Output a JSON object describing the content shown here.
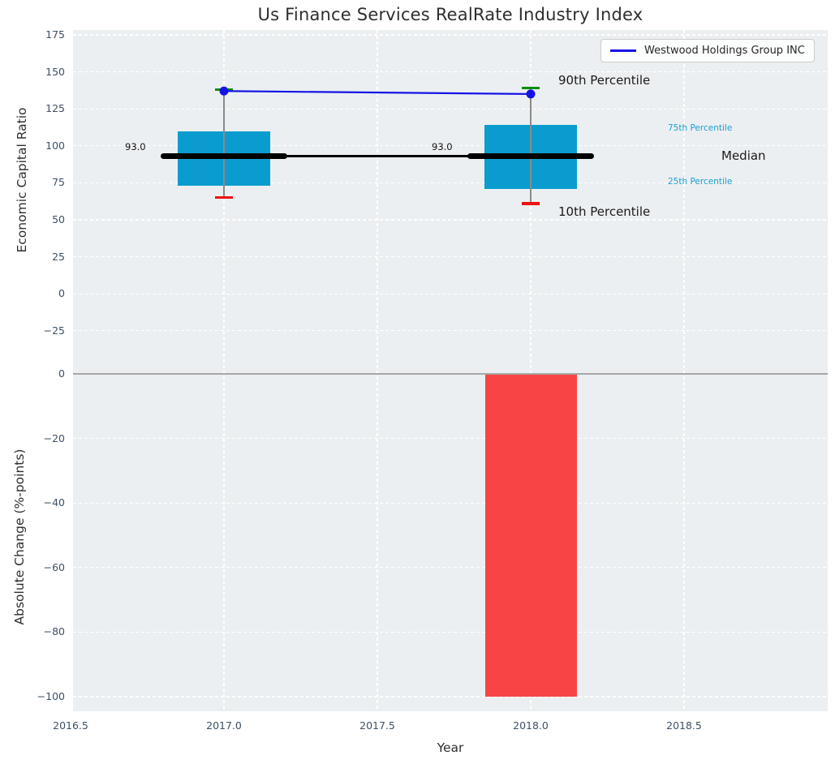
{
  "title": "Us Finance Services RealRate Industry Index",
  "legend": {
    "label": "Westwood Holdings Group INC"
  },
  "colors": {
    "plot_bg": "#eceff1",
    "grid": "#ffffff",
    "box_fill": "#0a9ccf",
    "bar_red": "#f83535",
    "cap_low_red": "#ee1111",
    "cap_high_green": "#0b8f0b",
    "series_blue": "#1414e6",
    "median_black": "#000000",
    "whisker_line": "#8a8a8a",
    "tick_text": "#3d5065",
    "percentile_text": "#16a0d4",
    "zero_line": "#a6a6a6"
  },
  "chart_data": [
    {
      "type": "box",
      "ylabel": "Economic Capital Ratio",
      "ylim": [
        -47,
        178
      ],
      "grid": true,
      "legend_position": "upper right",
      "boxes": [
        {
          "x": 2017,
          "p10": 65,
          "p25": 73,
          "median": 93,
          "p75": 110,
          "p90": 138,
          "median_label": "93.0"
        },
        {
          "x": 2018,
          "p10": 61,
          "p25": 71,
          "median": 93,
          "p75": 114,
          "p90": 139,
          "median_label": "93.0"
        }
      ],
      "series": [
        {
          "name": "Westwood Holdings Group INC",
          "x": [
            2017,
            2018
          ],
          "values": [
            137,
            135
          ]
        }
      ],
      "median_line": {
        "x": [
          2017,
          2018
        ],
        "values": [
          93,
          93
        ]
      },
      "yticks": {
        "values": [
          175,
          150,
          125,
          100,
          75,
          50,
          25,
          0,
          -25
        ],
        "labels": [
          "175",
          "150",
          "125",
          "100",
          "75",
          "50",
          "25",
          "0",
          "−25"
        ]
      },
      "annotations": [
        {
          "id": "p90",
          "text": "90th Percentile"
        },
        {
          "id": "p75",
          "text": "75th Percentile"
        },
        {
          "id": "median",
          "text": "Median"
        },
        {
          "id": "p25",
          "text": "25th Percentile"
        },
        {
          "id": "p10",
          "text": "10th Percentile"
        }
      ]
    },
    {
      "type": "bar",
      "ylabel": "Absolute Change (%-points)",
      "xlabel": "Year",
      "ylim": [
        -104,
        3
      ],
      "grid": true,
      "zero_line": true,
      "categories": [
        2018
      ],
      "values": [
        -100
      ],
      "yticks": {
        "values": [
          0,
          -20,
          -40,
          -60,
          -80,
          -100
        ],
        "labels": [
          "0",
          "−20",
          "−40",
          "−60",
          "−80",
          "−100"
        ]
      },
      "xticks": {
        "values": [
          2016.5,
          2017.0,
          2017.5,
          2018.0,
          2018.5
        ],
        "labels": [
          "2016.5",
          "2017.0",
          "2017.5",
          "2018.0",
          "2018.5"
        ]
      }
    }
  ]
}
